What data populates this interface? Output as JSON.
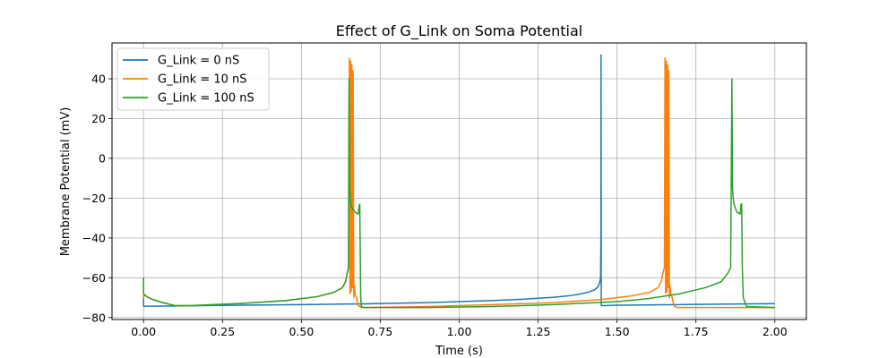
{
  "chart_data": {
    "type": "line",
    "title": "Effect of G_Link on Soma Potential",
    "xlabel": "Time (s)",
    "ylabel": "Membrane Potential (mV)",
    "xlim": [
      -0.1,
      2.1
    ],
    "ylim": [
      -81,
      58
    ],
    "xticks": [
      0.0,
      0.25,
      0.5,
      0.75,
      1.0,
      1.25,
      1.5,
      1.75,
      2.0
    ],
    "xtick_labels": [
      "0.00",
      "0.25",
      "0.50",
      "0.75",
      "1.00",
      "1.25",
      "1.50",
      "1.75",
      "2.00"
    ],
    "yticks": [
      -80,
      -60,
      -40,
      -20,
      0,
      20,
      40
    ],
    "ytick_labels": [
      "−80",
      "−60",
      "−40",
      "−20",
      "0",
      "20",
      "40"
    ],
    "grid": true,
    "legend_position": "top-left",
    "series": [
      {
        "name": "G_Link = 0 nS",
        "color": "#1f77b4",
        "x": [
          0.0,
          0.0,
          0.001,
          0.01,
          0.1,
          0.3,
          0.5,
          0.7,
          0.9,
          1.1,
          1.2,
          1.3,
          1.35,
          1.38,
          1.41,
          1.43,
          1.44,
          1.445,
          1.448,
          1.449,
          1.4495,
          1.45,
          1.451,
          1.46,
          1.5,
          1.7,
          2.0
        ],
        "y": [
          -60,
          -74.3,
          -74.3,
          -74.3,
          -74.2,
          -73.8,
          -73.5,
          -73.1,
          -72.5,
          -71.5,
          -70.8,
          -69.8,
          -69.0,
          -68.3,
          -67.2,
          -66.0,
          -64.5,
          -62.5,
          -60.0,
          -40.0,
          52.0,
          -73.0,
          -74.0,
          -74.0,
          -73.8,
          -73.5,
          -73.0
        ]
      },
      {
        "name": "G_Link = 10 nS",
        "color": "#ff7f0e",
        "x": [
          0.0,
          0.0,
          0.003,
          0.01,
          0.03,
          0.06,
          0.1,
          0.15,
          0.3,
          0.45,
          0.55,
          0.6,
          0.63,
          0.64,
          0.645,
          0.65,
          0.652,
          0.654,
          0.656,
          0.658,
          0.66,
          0.662,
          0.664,
          0.666,
          0.668,
          0.67,
          0.675,
          0.68,
          0.69,
          0.7,
          0.9,
          1.1,
          1.3,
          1.45,
          1.55,
          1.6,
          1.63,
          1.64,
          1.645,
          1.65,
          1.652,
          1.654,
          1.656,
          1.658,
          1.66,
          1.662,
          1.664,
          1.666,
          1.668,
          1.67,
          1.675,
          1.68,
          1.69,
          1.7,
          1.75,
          2.0
        ],
        "y": [
          -68.0,
          -70.0,
          -68.5,
          -69.5,
          -71.0,
          -72.5,
          -74.0,
          -74.0,
          -73.0,
          -71.5,
          -69.5,
          -67.5,
          -65.0,
          -62.0,
          -58.0,
          -55.0,
          50.5,
          -68.0,
          49.0,
          -67.0,
          47.0,
          -65.0,
          44.0,
          -70.0,
          -64.0,
          -68.0,
          -70.0,
          -74.0,
          -75.0,
          -75.0,
          -74.5,
          -73.5,
          -72.5,
          -71.0,
          -69.0,
          -67.5,
          -65.0,
          -62.0,
          -58.0,
          -55.0,
          50.5,
          -68.0,
          49.0,
          -67.0,
          47.0,
          -65.0,
          44.0,
          -70.0,
          -64.0,
          -68.0,
          -70.0,
          -74.0,
          -75.0,
          -75.0,
          -75.0,
          -75.0
        ]
      },
      {
        "name": "G_Link = 100 nS",
        "color": "#2ca02c",
        "x": [
          0.0,
          0.0,
          0.003,
          0.01,
          0.03,
          0.06,
          0.1,
          0.15,
          0.3,
          0.45,
          0.55,
          0.6,
          0.63,
          0.64,
          0.645,
          0.649,
          0.651,
          0.653,
          0.656,
          0.66,
          0.67,
          0.68,
          0.683,
          0.685,
          0.687,
          0.688,
          0.69,
          0.7,
          0.9,
          1.1,
          1.3,
          1.5,
          1.6,
          1.7,
          1.78,
          1.83,
          1.85,
          1.86,
          1.864,
          1.866,
          1.868,
          1.871,
          1.875,
          1.88,
          1.89,
          1.893,
          1.895,
          1.897,
          1.9,
          1.91,
          2.0
        ],
        "y": [
          -60.0,
          -68.0,
          -68.5,
          -69.5,
          -71.0,
          -72.5,
          -74.0,
          -74.0,
          -73.0,
          -71.5,
          -69.5,
          -67.5,
          -65.0,
          -62.0,
          -58.0,
          -55.0,
          40.0,
          -15.0,
          -22.0,
          -25.0,
          -27.0,
          -28.0,
          -24.0,
          -23.0,
          -55.0,
          -70.0,
          -74.5,
          -75.0,
          -75.0,
          -74.5,
          -73.5,
          -72.0,
          -70.5,
          -68.0,
          -65.0,
          -62.0,
          -58.0,
          -55.0,
          40.0,
          -15.0,
          -20.0,
          -23.0,
          -25.0,
          -27.0,
          -28.0,
          -23.0,
          -23.0,
          -55.0,
          -70.0,
          -74.5,
          -75.0
        ]
      }
    ]
  }
}
